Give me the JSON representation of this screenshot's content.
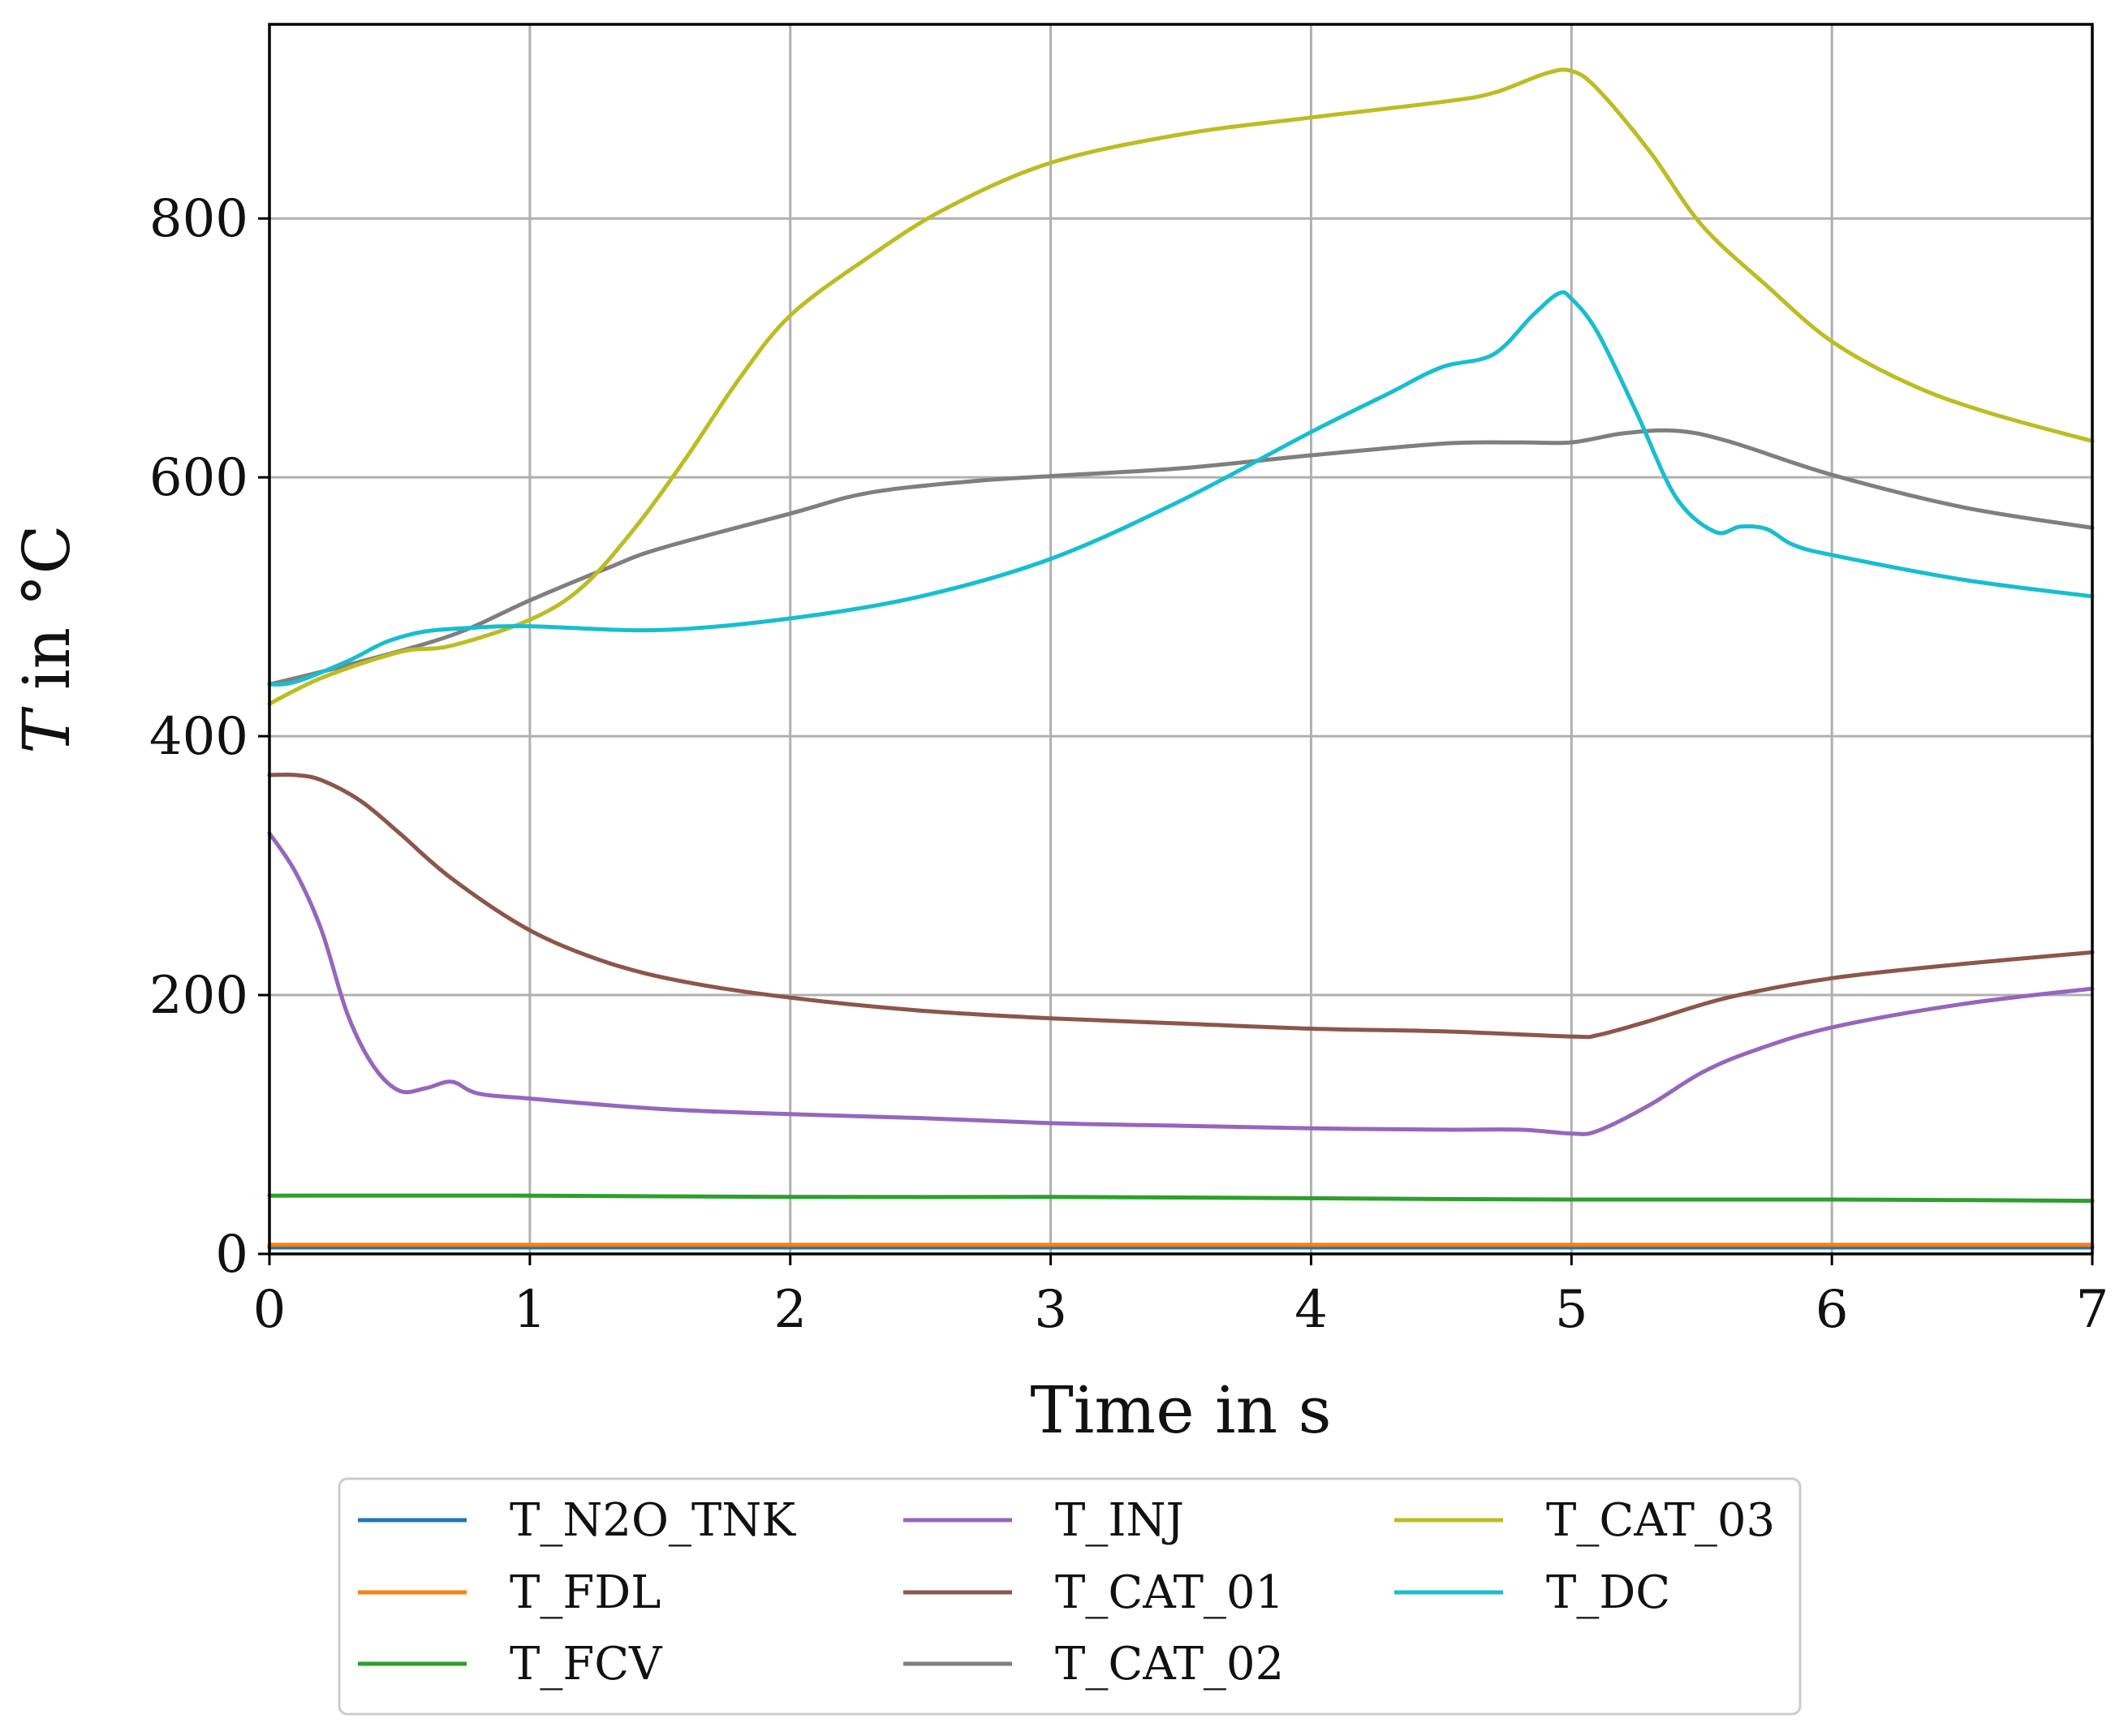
{
  "chart_data": {
    "type": "line",
    "title": "",
    "xlabel": "Time in s",
    "ylabel_italic": "T",
    "ylabel_rest": " in °C",
    "xlim": [
      0,
      7
    ],
    "ylim": [
      0,
      950
    ],
    "xticks": [
      0,
      1,
      2,
      3,
      4,
      5,
      6,
      7
    ],
    "yticks": [
      0,
      200,
      400,
      600,
      800
    ],
    "grid": true,
    "legend_position": "below",
    "series": [
      {
        "name": "T_N2O_TNK",
        "label": "T_N2O_TNK",
        "color": "#1f77b4",
        "points": [
          [
            0,
            5
          ],
          [
            1,
            5
          ],
          [
            2,
            5
          ],
          [
            3,
            5
          ],
          [
            4,
            5
          ],
          [
            5,
            5
          ],
          [
            6,
            5
          ],
          [
            7,
            5
          ]
        ]
      },
      {
        "name": "T_FDL",
        "label": "T_FDL",
        "color": "#ff7f0e",
        "points": [
          [
            0,
            7
          ],
          [
            1,
            7
          ],
          [
            2,
            7
          ],
          [
            3,
            7
          ],
          [
            4,
            7
          ],
          [
            5,
            7
          ],
          [
            6,
            7
          ],
          [
            7,
            7
          ]
        ]
      },
      {
        "name": "T_FCV",
        "label": "T_FCV",
        "color": "#2ca02c",
        "points": [
          [
            0,
            45
          ],
          [
            1,
            45
          ],
          [
            2,
            44
          ],
          [
            3,
            44
          ],
          [
            4,
            43
          ],
          [
            5,
            42
          ],
          [
            6,
            42
          ],
          [
            7,
            41
          ]
        ]
      },
      {
        "name": "T_INJ",
        "label": "T_INJ",
        "color": "#9467bd",
        "points": [
          [
            0,
            325
          ],
          [
            0.1,
            295
          ],
          [
            0.2,
            250
          ],
          [
            0.3,
            185
          ],
          [
            0.4,
            145
          ],
          [
            0.5,
            126
          ],
          [
            0.6,
            128
          ],
          [
            0.7,
            133
          ],
          [
            0.8,
            124
          ],
          [
            1.0,
            120
          ],
          [
            1.5,
            112
          ],
          [
            2,
            108
          ],
          [
            2.5,
            105
          ],
          [
            3,
            101
          ],
          [
            3.5,
            99
          ],
          [
            4,
            97
          ],
          [
            4.5,
            96
          ],
          [
            4.8,
            96
          ],
          [
            5.0,
            93
          ],
          [
            5.1,
            95
          ],
          [
            5.3,
            115
          ],
          [
            5.5,
            140
          ],
          [
            5.7,
            157
          ],
          [
            6,
            175
          ],
          [
            6.5,
            193
          ],
          [
            7,
            205
          ]
        ]
      },
      {
        "name": "T_CAT_01",
        "label": "T_CAT_01",
        "color": "#8c564b",
        "points": [
          [
            0,
            370
          ],
          [
            0.1,
            370
          ],
          [
            0.2,
            366
          ],
          [
            0.35,
            350
          ],
          [
            0.5,
            325
          ],
          [
            0.7,
            290
          ],
          [
            1.0,
            250
          ],
          [
            1.3,
            225
          ],
          [
            1.6,
            210
          ],
          [
            2,
            198
          ],
          [
            2.5,
            188
          ],
          [
            3,
            182
          ],
          [
            3.5,
            178
          ],
          [
            4,
            174
          ],
          [
            4.5,
            172
          ],
          [
            5,
            168
          ],
          [
            5.1,
            169
          ],
          [
            5.3,
            180
          ],
          [
            5.6,
            198
          ],
          [
            6,
            213
          ],
          [
            6.5,
            224
          ],
          [
            7,
            233
          ]
        ]
      },
      {
        "name": "T_CAT_02",
        "label": "T_CAT_02",
        "color": "#7f7f7f",
        "points": [
          [
            0,
            440
          ],
          [
            0.3,
            455
          ],
          [
            0.7,
            478
          ],
          [
            1,
            505
          ],
          [
            1.3,
            530
          ],
          [
            1.5,
            545
          ],
          [
            2,
            572
          ],
          [
            2.3,
            588
          ],
          [
            2.7,
            597
          ],
          [
            3,
            601
          ],
          [
            3.5,
            607
          ],
          [
            4,
            617
          ],
          [
            4.5,
            626
          ],
          [
            4.8,
            627
          ],
          [
            5,
            627
          ],
          [
            5.2,
            634
          ],
          [
            5.4,
            636
          ],
          [
            5.6,
            628
          ],
          [
            6,
            602
          ],
          [
            6.5,
            577
          ],
          [
            7,
            561
          ]
        ]
      },
      {
        "name": "T_CAT_03",
        "label": "T_CAT_03",
        "color": "#bcbd22",
        "points": [
          [
            0,
            425
          ],
          [
            0.2,
            445
          ],
          [
            0.5,
            465
          ],
          [
            0.7,
            470
          ],
          [
            1.0,
            490
          ],
          [
            1.2,
            515
          ],
          [
            1.4,
            560
          ],
          [
            1.6,
            615
          ],
          [
            1.8,
            675
          ],
          [
            2.0,
            725
          ],
          [
            2.3,
            770
          ],
          [
            2.6,
            808
          ],
          [
            3.0,
            843
          ],
          [
            3.5,
            865
          ],
          [
            4.0,
            878
          ],
          [
            4.5,
            890
          ],
          [
            4.7,
            897
          ],
          [
            4.9,
            912
          ],
          [
            5.0,
            914
          ],
          [
            5.1,
            900
          ],
          [
            5.3,
            852
          ],
          [
            5.5,
            795
          ],
          [
            5.75,
            748
          ],
          [
            6.0,
            705
          ],
          [
            6.3,
            672
          ],
          [
            6.6,
            650
          ],
          [
            7.0,
            628
          ]
        ]
      },
      {
        "name": "T_DC",
        "label": "T_DC",
        "color": "#17becf",
        "points": [
          [
            0,
            440
          ],
          [
            0.1,
            442
          ],
          [
            0.3,
            458
          ],
          [
            0.45,
            473
          ],
          [
            0.6,
            481
          ],
          [
            0.8,
            484
          ],
          [
            1,
            485
          ],
          [
            1.5,
            482
          ],
          [
            2,
            491
          ],
          [
            2.5,
            508
          ],
          [
            3,
            537
          ],
          [
            3.5,
            582
          ],
          [
            4,
            635
          ],
          [
            4.3,
            665
          ],
          [
            4.5,
            685
          ],
          [
            4.7,
            695
          ],
          [
            4.85,
            725
          ],
          [
            4.95,
            742
          ],
          [
            5.0,
            738
          ],
          [
            5.1,
            712
          ],
          [
            5.25,
            650
          ],
          [
            5.4,
            585
          ],
          [
            5.55,
            558
          ],
          [
            5.65,
            562
          ],
          [
            5.75,
            560
          ],
          [
            5.85,
            548
          ],
          [
            6,
            540
          ],
          [
            6.5,
            521
          ],
          [
            7,
            508
          ]
        ]
      }
    ]
  }
}
